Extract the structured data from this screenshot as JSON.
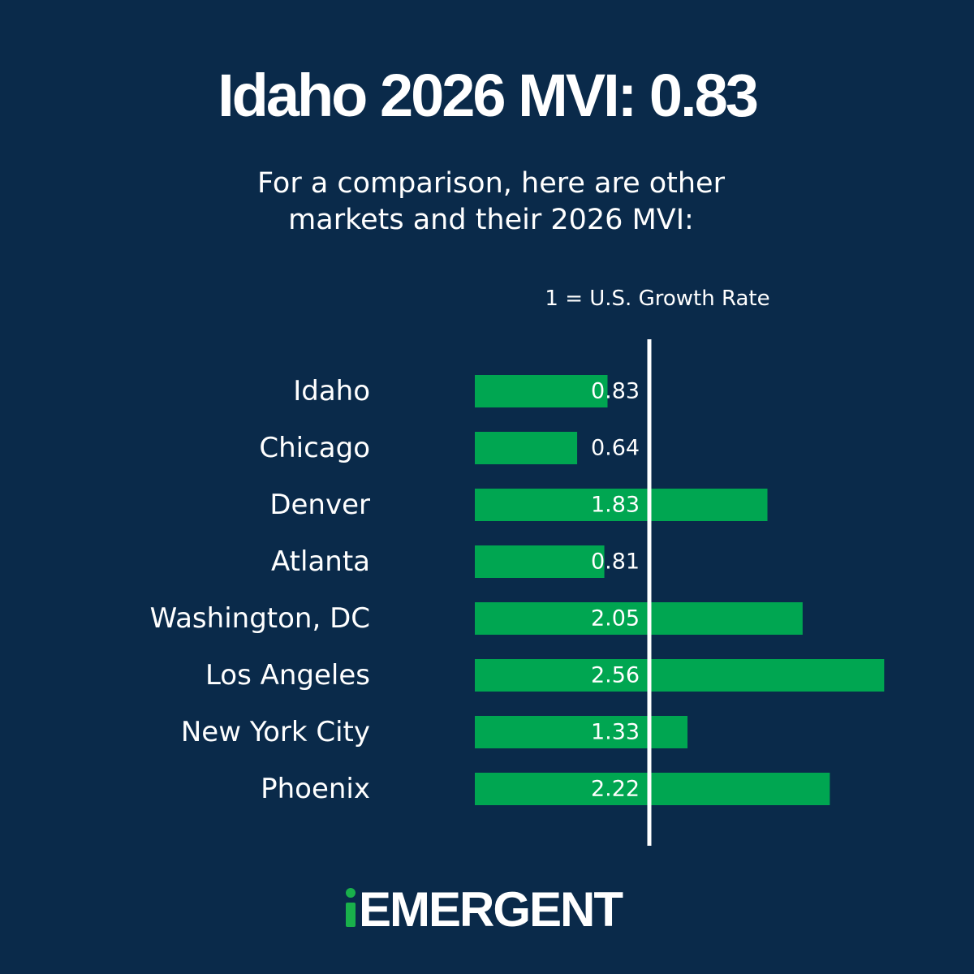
{
  "title": "Idaho 2026 MVI: 0.83",
  "subtitle": "For a comparison, here are other markets and their 2026 MVI:",
  "reference_note": "1 = U.S. Growth Rate",
  "logo": {
    "text": "EMERGENT",
    "prefix": "i",
    "accent_color": "#19b04b"
  },
  "colors": {
    "background": "#0a2a4a",
    "bar": "#00a651",
    "text": "#ffffff",
    "reference_line": "#ffffff"
  },
  "chart_data": {
    "type": "bar",
    "orientation": "horizontal",
    "categories": [
      "Idaho",
      "Chicago",
      "Denver",
      "Atlanta",
      "Washington, DC",
      "Los Angeles",
      "New York City",
      "Phoenix"
    ],
    "values": [
      0.83,
      0.64,
      1.83,
      0.81,
      2.05,
      2.56,
      1.33,
      2.22
    ],
    "value_labels": [
      "0.83",
      "0.64",
      "1.83",
      "0.81",
      "2.05",
      "2.56",
      "1.33",
      "2.22"
    ],
    "reference_value": 1,
    "xlim": [
      0,
      2.56
    ],
    "grid": false
  }
}
